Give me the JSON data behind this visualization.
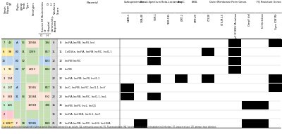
{
  "left_col_headers": [
    "Strain Hippo ID",
    "ST",
    "Phylogroup",
    "Fimb Type",
    "Serotypes",
    "Source Of Bacteremia Or Hospital Community-Acquired",
    "Or H",
    "Virulence Score"
  ],
  "source_subheaders": [
    "O",
    "H"
  ],
  "plasmid_header": "Plasmid",
  "group_headers": [
    {
      "label": "Carbapenemase",
      "ncols": 2
    },
    {
      "label": "Broad-Spectrum Beta-Lactamase",
      "ncols": 2
    },
    {
      "label": "AmpC",
      "ncols": 1
    },
    {
      "label": "ESBL",
      "ncols": 1
    },
    {
      "label": "Outer Membrane Porin Genes",
      "ncols": 4
    },
    {
      "label": "FQ Resistant Genes",
      "ncols": 2
    }
  ],
  "resist_col_headers": [
    "NDM-1",
    "OXA-48",
    "TEM-1",
    "TEM-135",
    "CMT-2",
    "CMT-29",
    "CTX-M",
    "CTX-M-15",
    "OmpC D189G Mutation",
    "OmpF del",
    "fol Deletion",
    "Gyra (D87N)"
  ],
  "rows": [
    {
      "strain": "7",
      "st": "44",
      "phylo": "A",
      "fimb": "56",
      "sero": "10966",
      "src_o": "",
      "src_h": "394",
      "vir": "8",
      "plasmid_num": "8",
      "color": "#c6e0b4"
    },
    {
      "strain": "8",
      "st": "98",
      "phylo": "B3",
      "fimb": "31",
      "sero": "1099",
      "src_o": "",
      "src_h": "B17",
      "vir": "11",
      "plasmid_num": "11",
      "color": "#ffeb9c"
    },
    {
      "strain": "10",
      "st": "",
      "phylo": "B3",
      "fimb": "32",
      "sero": "",
      "src_o": "",
      "src_h": "B23",
      "vir": "12",
      "plasmid_num": "12",
      "color": "#bdd7ee"
    },
    {
      "strain": "1",
      "st": "90",
      "phylo": "B2",
      "fimb": "27",
      "sero": "4223",
      "src_o": "",
      "src_h": "B84",
      "vir": "20",
      "plasmid_num": "20",
      "color": "#fff2cc"
    },
    {
      "strain": "3",
      "st": "134",
      "phylo": "",
      "fimb": "",
      "sero": "",
      "src_o": "",
      "src_h": "",
      "vir": "22",
      "plasmid_num": "22",
      "color": "#fce4d6"
    },
    {
      "strain": "6",
      "st": "147",
      "phylo": "A",
      "fimb": "",
      "sero": "10365",
      "src_o": "",
      "src_h": "B17",
      "vir": "15",
      "plasmid_num": "15",
      "color": "#e2efda"
    },
    {
      "strain": "9",
      "st": "549",
      "phylo": "31",
      "fimb": "54",
      "sero": "10384",
      "src_o": "",
      "src_h": "F92",
      "vir": "22",
      "plasmid_num": "22",
      "color": "#fce4d6"
    },
    {
      "strain": "5",
      "st": "405",
      "phylo": "",
      "fimb": "",
      "sero": "10969",
      "src_o": "",
      "src_h": "396",
      "vir": "16",
      "plasmid_num": "16",
      "color": "#c6efce"
    },
    {
      "strain": "2",
      "st": "",
      "phylo": "",
      "fimb": "",
      "sero": "",
      "src_o": "",
      "src_h": "",
      "vir": "15",
      "plasmid_num": "15",
      "color": "#ffc7ce"
    },
    {
      "strain": "4",
      "st": "1497*",
      "phylo": "F",
      "fimb": "98",
      "sero": "10985",
      "src_o": "",
      "src_h": "B90",
      "vir": "21",
      "plasmid_num": "21",
      "color": "#ffe699"
    }
  ],
  "cell_colors": [
    [
      "#c6e0b4",
      "#c6e0b4",
      "#bdd7ee",
      "#c6e0b4",
      "#fce4d6",
      "#c6e0b4",
      "#d9d9d9",
      "#fce4d6"
    ],
    [
      "#ffeb9c",
      "#ffeb9c",
      "#bdd7ee",
      "#c6e0b4",
      "#c6e0b4",
      "#c6e0b4",
      "#d9d9d9",
      "#c6e0b4"
    ],
    [
      "#bdd7ee",
      "#bdd7ee",
      "#bdd7ee",
      "#c6e0b4",
      "#c6e0b4",
      "#bdd7ee",
      "#d9d9d9",
      "#c6e0b4"
    ],
    [
      "#fff2cc",
      "#fff2cc",
      "#bdd7ee",
      "#c6e0b4",
      "#fce4d6",
      "#c6e0b4",
      "#d9d9d9",
      "#c6e0b4"
    ],
    [
      "#fce4d6",
      "#fce4d6",
      "#bdd7ee",
      "#c6e0b4",
      "#c6e0b4",
      "#c6e0b4",
      "#d9d9d9",
      "#c6e0b4"
    ],
    [
      "#e2efda",
      "#e2efda",
      "#bdd7ee",
      "#c6e0b4",
      "#fce4d6",
      "#c6e0b4",
      "#d9d9d9",
      "#c6e0b4"
    ],
    [
      "#fce4d6",
      "#fce4d6",
      "#bdd7ee",
      "#c6e0b4",
      "#fce4d6",
      "#fce4d6",
      "#d9d9d9",
      "#fce4d6"
    ],
    [
      "#c6efce",
      "#c6efce",
      "#c6e0b4",
      "#c6e0b4",
      "#fce4d6",
      "#c6e0b4",
      "#d9d9d9",
      "#c6e0b4"
    ],
    [
      "#ffc7ce",
      "#ffc7ce",
      "#c6e0b4",
      "#c6e0b4",
      "#c6e0b4",
      "#c6e0b4",
      "#d9d9d9",
      "#c6e0b4"
    ],
    [
      "#ffe699",
      "#ffe699",
      "#fce4d6",
      "#c6e0b4",
      "#bdd7ee",
      "#c6e0b4",
      "#d9d9d9",
      "#c6e0b4"
    ]
  ],
  "plasmid_labels": [
    "IncFIA,IncFIB, IncFII, IncI",
    "Col156a, IncFIA, IncFIB IncFIC, IncI1-1",
    "IncFIB IncFIC",
    "IncFIB",
    "IncFIA, IncFIB, IncFII, IncI1-1",
    "IncC, IncFIB, IncFIC, IncI1-1, IncY",
    "IncFIA,IncFIB, IncFIC, IncI1-1, IncL",
    "IncFIB, IncFII, IncL, IncQ1",
    "IncFIA, IncHI1B, IncI1-1, IncY",
    "IncFIA,IncFIB, IncFIC, IncHI2, IncHI2A"
  ],
  "resistance_matrix": [
    [
      0,
      0,
      0,
      0,
      0,
      0,
      0,
      0,
      1,
      0,
      0,
      1
    ],
    [
      0,
      0,
      1,
      0,
      0,
      0,
      1,
      0,
      1,
      0,
      0,
      0
    ],
    [
      0,
      0,
      1,
      0,
      0,
      0,
      0,
      0,
      1,
      0,
      0,
      0
    ],
    [
      0,
      0,
      0,
      0,
      0,
      0,
      0,
      0,
      1,
      0,
      0,
      0
    ],
    [
      0,
      0,
      1,
      0,
      1,
      0,
      1,
      0,
      0,
      0,
      0,
      1
    ],
    [
      1,
      0,
      0,
      0,
      0,
      0,
      0,
      0,
      0,
      0,
      0,
      1
    ],
    [
      1,
      0,
      1,
      0,
      0,
      0,
      0,
      0,
      0,
      0,
      0,
      0
    ],
    [
      0,
      0,
      0,
      0,
      0,
      0,
      0,
      0,
      0,
      1,
      1,
      0
    ],
    [
      0,
      0,
      0,
      0,
      0,
      0,
      0,
      0,
      0,
      0,
      0,
      0
    ],
    [
      0,
      1,
      0,
      0,
      0,
      0,
      0,
      0,
      0,
      1,
      1,
      0
    ]
  ],
  "virulence_vals": [
    "8",
    "11",
    "12",
    "20",
    "22",
    "15",
    "22",
    "16",
    "15",
    "21"
  ],
  "footnote": "Virulence score is the number of virulence genes that were detected in an isolate. CA, community-acquired; FQ, Fluoroquinolone; HA, hospital-acquired; IAI, intraabdominal infection; ST, sequence type; UTI, primary tract infection.",
  "bg": "#ffffff"
}
